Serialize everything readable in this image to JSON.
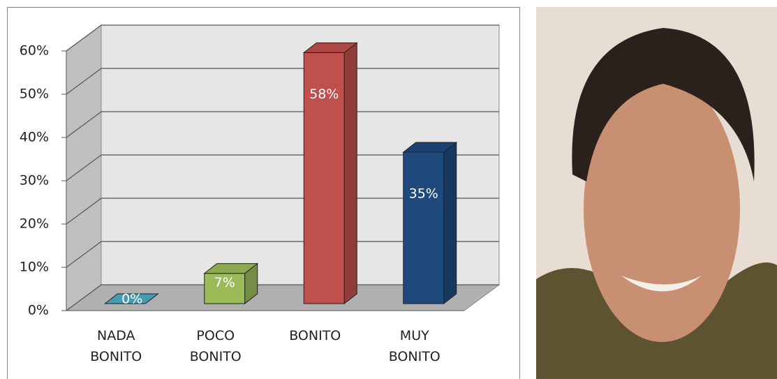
{
  "chart_data": {
    "type": "bar3d",
    "categories": [
      "NADA BONITO",
      "POCO BONITO",
      "BONITO",
      "MUY BONITO"
    ],
    "values": [
      0,
      7,
      58,
      35
    ],
    "value_labels": [
      "0%",
      "7%",
      "58%",
      "35%"
    ],
    "colors": [
      "#4bacc6",
      "#9bbb59",
      "#c0504d",
      "#1f497d"
    ],
    "ylim": [
      0,
      60
    ],
    "yticks": [
      {
        "value": 0,
        "label": "0%"
      },
      {
        "value": 10,
        "label": "10%"
      },
      {
        "value": 20,
        "label": "20%"
      },
      {
        "value": 30,
        "label": "30%"
      },
      {
        "value": 40,
        "label": "40%"
      },
      {
        "value": 50,
        "label": "50%"
      },
      {
        "value": 60,
        "label": "60%"
      }
    ],
    "grid": true
  }
}
